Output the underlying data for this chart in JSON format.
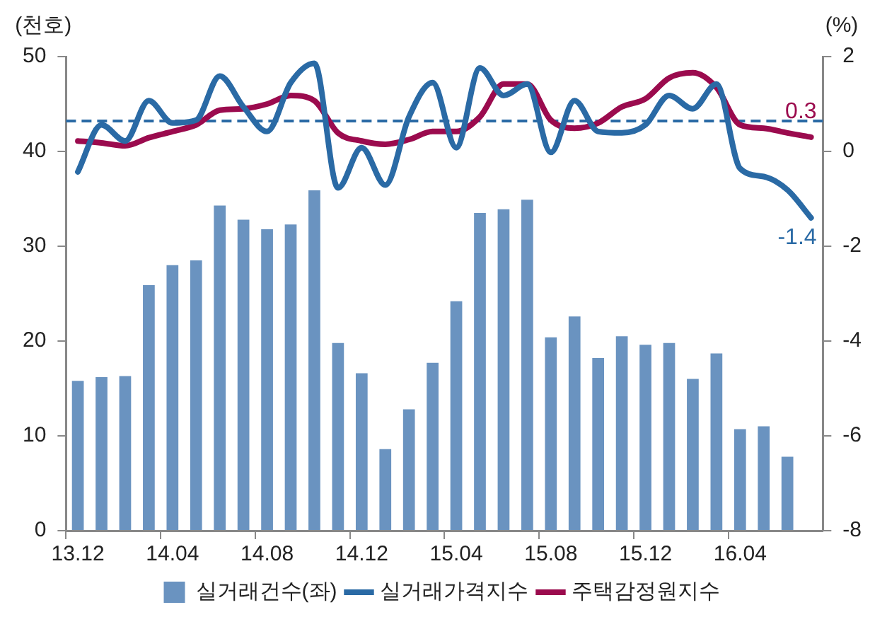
{
  "chart_data": {
    "type": "bar",
    "ylabel": "(천호)",
    "y2label": "(%)",
    "categories": [
      "13.12",
      null,
      null,
      null,
      "14.04",
      null,
      null,
      null,
      "14.08",
      null,
      null,
      null,
      "14.12",
      null,
      null,
      null,
      "15.04",
      null,
      null,
      null,
      "15.08",
      null,
      null,
      null,
      "15.12",
      null,
      null,
      null,
      "16.04",
      null,
      null,
      null
    ],
    "series": [
      {
        "name": "실거래건수(좌)",
        "color": "#6a93c0",
        "values": [
          15.8,
          16.2,
          16.3,
          25.9,
          28,
          28.5,
          34.3,
          32.8,
          31.8,
          32.3,
          35.9,
          19.8,
          16.6,
          8.6,
          12.8,
          17.7,
          24.2,
          33.5,
          33.9,
          34.9,
          20.4,
          22.6,
          18.2,
          20.5,
          19.6,
          19.8,
          16,
          18.7,
          10.7,
          11,
          7.8,
          null
        ]
      },
      {
        "name": "실거래가격지수",
        "type": "line",
        "axis": "y2",
        "color": "#2a6aa5",
        "values": [
          -0.43,
          0.56,
          0.22,
          1.07,
          0.6,
          0.66,
          1.59,
          0.94,
          0.42,
          1.45,
          1.86,
          -0.77,
          0.08,
          -0.71,
          0.73,
          1.45,
          0.08,
          1.76,
          1.18,
          1.42,
          -0.02,
          1.07,
          0.42,
          0.39,
          0.56,
          1.18,
          0.9,
          1.42,
          -0.36,
          -0.53,
          -0.81,
          -1.4
        ],
        "value_labels": [
          null,
          null,
          null,
          null,
          null,
          null,
          null,
          null,
          null,
          null,
          null,
          null,
          null,
          null,
          null,
          null,
          null,
          null,
          null,
          null,
          null,
          null,
          null,
          null,
          null,
          null,
          null,
          null,
          null,
          null,
          null,
          "-1.4"
        ]
      },
      {
        "name": "주택감정원지수",
        "type": "line",
        "axis": "y2",
        "color": "#9b0b4e",
        "values": [
          0.22,
          0.18,
          0.12,
          0.29,
          0.42,
          0.56,
          0.87,
          0.9,
          1.0,
          1.18,
          1.07,
          0.39,
          0.22,
          0.15,
          0.25,
          0.42,
          0.42,
          0.73,
          1.42,
          1.42,
          0.66,
          0.49,
          0.6,
          0.94,
          1.11,
          1.55,
          1.66,
          1.35,
          0.56,
          0.49,
          0.39,
          0.3
        ],
        "value_labels": [
          null,
          null,
          null,
          null,
          null,
          null,
          null,
          null,
          null,
          null,
          null,
          null,
          null,
          null,
          null,
          null,
          null,
          null,
          null,
          null,
          null,
          null,
          null,
          null,
          null,
          null,
          null,
          null,
          null,
          null,
          null,
          "0.3"
        ]
      }
    ],
    "ylim": [
      0,
      50
    ],
    "yticks": [
      0,
      10,
      20,
      30,
      40,
      50
    ],
    "y2lim": [
      -8,
      2
    ],
    "y2ticks": [
      -8,
      -6,
      -4,
      -2,
      0,
      2
    ],
    "ref_lines": [
      {
        "axis": "y2",
        "value": 0.64,
        "color": "#2a6aa5",
        "line_style": "dashed"
      }
    ],
    "grid": false,
    "legend": "bottom",
    "marker": "none",
    "line_style": "solid"
  }
}
